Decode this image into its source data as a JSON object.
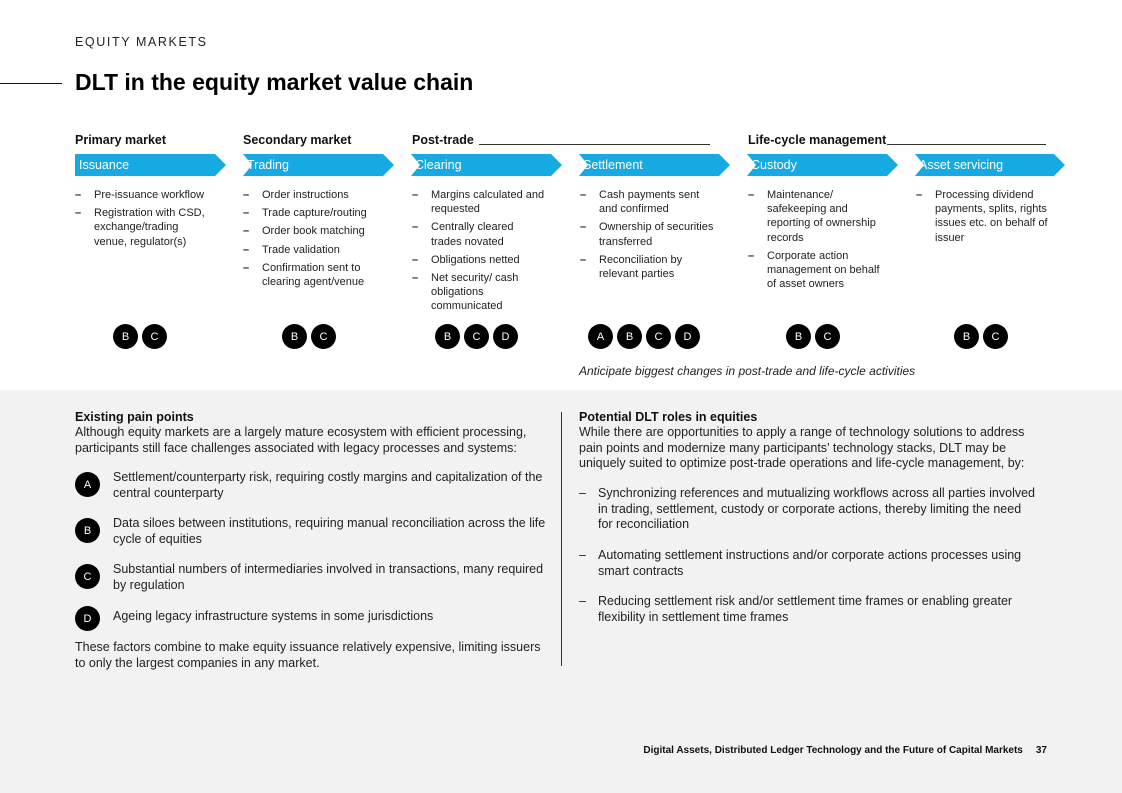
{
  "header": {
    "section": "EQUITY MARKETS",
    "title": "DLT in the equity market value chain"
  },
  "groups": [
    {
      "label": "Primary market"
    },
    {
      "label": "Secondary market"
    },
    {
      "label": "Post-trade"
    },
    {
      "label": "Life-cycle management"
    }
  ],
  "stages": [
    {
      "label": "Issuance",
      "bullets": [
        "Pre-issuance workflow",
        "Registration with CSD, exchange/trading venue, regulator(s)"
      ],
      "badges": [
        "B",
        "C"
      ]
    },
    {
      "label": "Trading",
      "bullets": [
        "Order instructions",
        "Trade capture/routing",
        "Order book matching",
        "Trade validation",
        "Confirmation sent to clearing agent/venue"
      ],
      "badges": [
        "B",
        "C"
      ]
    },
    {
      "label": "Clearing",
      "bullets": [
        "Margins calculated and requested",
        "Centrally cleared trades novated",
        "Obligations netted",
        "Net security/ cash obligations communicated"
      ],
      "badges": [
        "B",
        "C",
        "D"
      ]
    },
    {
      "label": "Settlement",
      "bullets": [
        "Cash payments sent and confirmed",
        "Ownership of securities transferred",
        "Reconciliation by relevant parties"
      ],
      "badges": [
        "A",
        "B",
        "C",
        "D"
      ]
    },
    {
      "label": "Custody",
      "bullets": [
        "Maintenance/ safekeeping and reporting of ownership records",
        "Corporate action management on behalf of asset owners"
      ],
      "badges": [
        "B",
        "C"
      ]
    },
    {
      "label": "Asset servicing",
      "bullets": [
        "Processing dividend payments, splits, rights issues etc. on behalf of issuer"
      ],
      "badges": [
        "B",
        "C"
      ]
    }
  ],
  "note": "Anticipate biggest changes in post-trade and life-cycle activities",
  "pain_points": {
    "heading": "Existing pain points",
    "intro": "Although equity markets are a largely mature ecosystem with efficient processing, participants still face challenges associated with legacy processes and systems:",
    "items": [
      {
        "letter": "A",
        "text": "Settlement/counterparty risk, requiring costly margins and capitalization of the central counterparty"
      },
      {
        "letter": "B",
        "text": "Data siloes between institutions, requiring manual reconciliation across the life cycle of equities"
      },
      {
        "letter": "C",
        "text": "Substantial numbers of intermediaries involved in transactions, many required by regulation"
      },
      {
        "letter": "D",
        "text": "Ageing legacy infrastructure systems in some jurisdictions"
      }
    ],
    "closing": "These factors combine to make equity issuance relatively expensive, limiting issuers to only the largest companies in any market."
  },
  "dlt_roles": {
    "heading": "Potential DLT roles in equities",
    "intro": "While there are opportunities to apply a range of technology solutions to address pain points and modernize many participants’ technology stacks, DLT may be uniquely suited to optimize post-trade operations and life-cycle management, by:",
    "items": [
      "Synchronizing references and mutualizing workflows across all parties involved in trading, settlement, custody or corporate actions, thereby limiting the need for reconciliation",
      "Automating settlement instructions and/or corporate actions processes using smart contracts",
      "Reducing settlement risk and/or settlement time frames or enabling greater flexibility in settlement time frames"
    ]
  },
  "footer": {
    "publication": "Digital Assets, Distributed Ledger Technology and the Future of Capital Markets",
    "page_number": "37"
  },
  "colors": {
    "accent": "#17a9e1",
    "panel": "#f2f2f2",
    "badge": "#000000"
  }
}
